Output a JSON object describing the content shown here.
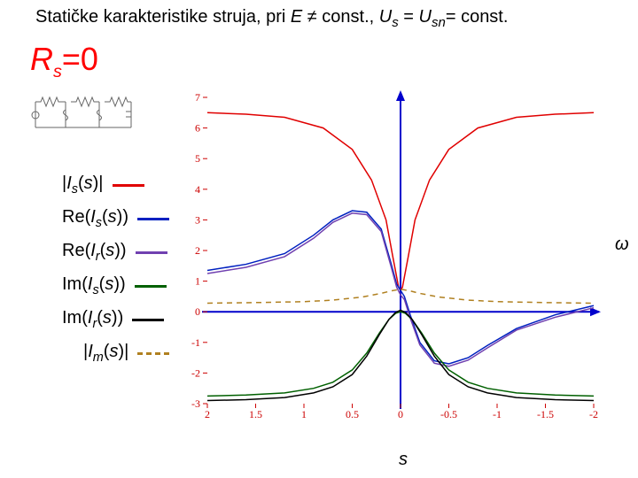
{
  "title_plain": "Statičke karakteristike struja, pri ",
  "title_e": "E",
  "title_neq": " ≠ const., ",
  "title_us": "U",
  "title_eq": " = ",
  "title_usn": "U",
  "title_const": "= const.",
  "sub_s": "s",
  "sub_sn": "sn",
  "rs_R": "R",
  "rs_s": "s",
  "rs_eq0": "=0",
  "omega": "ω",
  "s_axis": "s",
  "legend": [
    {
      "html": "|<span class='it'>I</span><sub>s</sub>(<span class='it'>s</span>)|",
      "color": "#e00000",
      "dash": "solid"
    },
    {
      "html": "Re(<span class='it'>I</span><sub>s</sub>(<span class='it'>s</span>))",
      "color": "#0020c0",
      "dash": "solid"
    },
    {
      "html": "Re(<span class='it'>I</span><sub>r</sub>(<span class='it'>s</span>))",
      "color": "#7040b0",
      "dash": "solid"
    },
    {
      "html": "Im(<span class='it'>I</span><sub>s</sub>(<span class='it'>s</span>))",
      "color": "#006000",
      "dash": "solid"
    },
    {
      "html": "Im(<span class='it'>I</span><sub>r</sub>(<span class='it'>s</span>))",
      "color": "#000000",
      "dash": "solid"
    },
    {
      "html": "|<span class='it'>I</span><sub>m</sub>(<span class='it'>s</span>)|",
      "color": "#b08020",
      "dash": "dashed",
      "indent": true
    }
  ],
  "chart": {
    "xlim": [
      2,
      -2
    ],
    "ylim": [
      -3,
      7
    ],
    "xticks": [
      2,
      1.5,
      1,
      0.5,
      0,
      -0.5,
      -1,
      -1.5,
      -2
    ],
    "yticks": [
      -3,
      -2,
      -1,
      0,
      1,
      2,
      3,
      4,
      5,
      6,
      7
    ],
    "background": "#ffffff",
    "axis_color": "#0000cc",
    "axis_width": 2,
    "tick_color": "#cc0000",
    "series": [
      {
        "name": "Is_abs",
        "color": "#e00000",
        "width": 1.5,
        "dash": "",
        "pts": [
          [
            2,
            6.5
          ],
          [
            1.6,
            6.45
          ],
          [
            1.2,
            6.35
          ],
          [
            0.8,
            6.0
          ],
          [
            0.5,
            5.3
          ],
          [
            0.3,
            4.3
          ],
          [
            0.15,
            3.0
          ],
          [
            0.08,
            1.8
          ],
          [
            0.02,
            0.8
          ],
          [
            0,
            0.7
          ],
          [
            -0.02,
            0.8
          ],
          [
            -0.08,
            1.8
          ],
          [
            -0.15,
            3.0
          ],
          [
            -0.3,
            4.3
          ],
          [
            -0.5,
            5.3
          ],
          [
            -0.8,
            6.0
          ],
          [
            -1.2,
            6.35
          ],
          [
            -1.6,
            6.45
          ],
          [
            -2,
            6.5
          ]
        ]
      },
      {
        "name": "ReIs",
        "color": "#0020c0",
        "width": 1.5,
        "dash": "",
        "pts": [
          [
            2,
            1.35
          ],
          [
            1.6,
            1.55
          ],
          [
            1.2,
            1.9
          ],
          [
            0.9,
            2.5
          ],
          [
            0.7,
            3.0
          ],
          [
            0.5,
            3.3
          ],
          [
            0.35,
            3.25
          ],
          [
            0.2,
            2.7
          ],
          [
            0.1,
            1.6
          ],
          [
            0.04,
            0.9
          ],
          [
            0,
            0.7
          ],
          [
            -0.04,
            0.5
          ],
          [
            -0.1,
            -0.1
          ],
          [
            -0.2,
            -1.0
          ],
          [
            -0.35,
            -1.6
          ],
          [
            -0.5,
            -1.7
          ],
          [
            -0.7,
            -1.5
          ],
          [
            -0.9,
            -1.1
          ],
          [
            -1.2,
            -0.55
          ],
          [
            -1.6,
            -0.1
          ],
          [
            -2,
            0.2
          ]
        ]
      },
      {
        "name": "ReIr",
        "color": "#7040b0",
        "width": 1.5,
        "dash": "",
        "pts": [
          [
            2,
            1.25
          ],
          [
            1.6,
            1.45
          ],
          [
            1.2,
            1.8
          ],
          [
            0.9,
            2.4
          ],
          [
            0.7,
            2.92
          ],
          [
            0.5,
            3.22
          ],
          [
            0.35,
            3.17
          ],
          [
            0.2,
            2.62
          ],
          [
            0.1,
            1.5
          ],
          [
            0.04,
            0.8
          ],
          [
            0,
            0.55
          ],
          [
            -0.04,
            0.4
          ],
          [
            -0.1,
            -0.2
          ],
          [
            -0.2,
            -1.08
          ],
          [
            -0.35,
            -1.68
          ],
          [
            -0.5,
            -1.78
          ],
          [
            -0.7,
            -1.58
          ],
          [
            -0.9,
            -1.18
          ],
          [
            -1.2,
            -0.6
          ],
          [
            -1.6,
            -0.18
          ],
          [
            -2,
            0.13
          ]
        ]
      },
      {
        "name": "ImIs",
        "color": "#006000",
        "width": 1.5,
        "dash": "",
        "pts": [
          [
            2,
            -2.75
          ],
          [
            1.6,
            -2.72
          ],
          [
            1.2,
            -2.65
          ],
          [
            0.9,
            -2.5
          ],
          [
            0.7,
            -2.3
          ],
          [
            0.5,
            -1.9
          ],
          [
            0.35,
            -1.35
          ],
          [
            0.22,
            -0.7
          ],
          [
            0.12,
            -0.25
          ],
          [
            0.05,
            -0.05
          ],
          [
            0,
            0
          ],
          [
            -0.05,
            -0.05
          ],
          [
            -0.12,
            -0.25
          ],
          [
            -0.22,
            -0.7
          ],
          [
            -0.35,
            -1.35
          ],
          [
            -0.5,
            -1.9
          ],
          [
            -0.7,
            -2.3
          ],
          [
            -0.9,
            -2.5
          ],
          [
            -1.2,
            -2.65
          ],
          [
            -1.6,
            -2.72
          ],
          [
            -2,
            -2.75
          ]
        ]
      },
      {
        "name": "ImIr",
        "color": "#000000",
        "width": 1.5,
        "dash": "",
        "pts": [
          [
            2,
            -2.9
          ],
          [
            1.6,
            -2.87
          ],
          [
            1.2,
            -2.8
          ],
          [
            0.9,
            -2.65
          ],
          [
            0.7,
            -2.45
          ],
          [
            0.5,
            -2.05
          ],
          [
            0.35,
            -1.45
          ],
          [
            0.22,
            -0.75
          ],
          [
            0.12,
            -0.25
          ],
          [
            0.05,
            -0.02
          ],
          [
            0,
            0.05
          ],
          [
            -0.05,
            -0.02
          ],
          [
            -0.12,
            -0.25
          ],
          [
            -0.22,
            -0.75
          ],
          [
            -0.35,
            -1.45
          ],
          [
            -0.5,
            -2.05
          ],
          [
            -0.7,
            -2.45
          ],
          [
            -0.9,
            -2.65
          ],
          [
            -1.2,
            -2.8
          ],
          [
            -1.6,
            -2.87
          ],
          [
            -2,
            -2.9
          ]
        ]
      },
      {
        "name": "Im_abs",
        "color": "#b08020",
        "width": 1.5,
        "dash": "6 5",
        "pts": [
          [
            2,
            0.28
          ],
          [
            1.5,
            0.3
          ],
          [
            1.0,
            0.33
          ],
          [
            0.7,
            0.38
          ],
          [
            0.4,
            0.48
          ],
          [
            0.2,
            0.6
          ],
          [
            0.1,
            0.68
          ],
          [
            0.03,
            0.72
          ],
          [
            0,
            0.73
          ],
          [
            -0.03,
            0.72
          ],
          [
            -0.1,
            0.68
          ],
          [
            -0.2,
            0.6
          ],
          [
            -0.4,
            0.48
          ],
          [
            -0.7,
            0.38
          ],
          [
            -1.0,
            0.33
          ],
          [
            -1.5,
            0.3
          ],
          [
            -2,
            0.28
          ]
        ]
      }
    ]
  }
}
